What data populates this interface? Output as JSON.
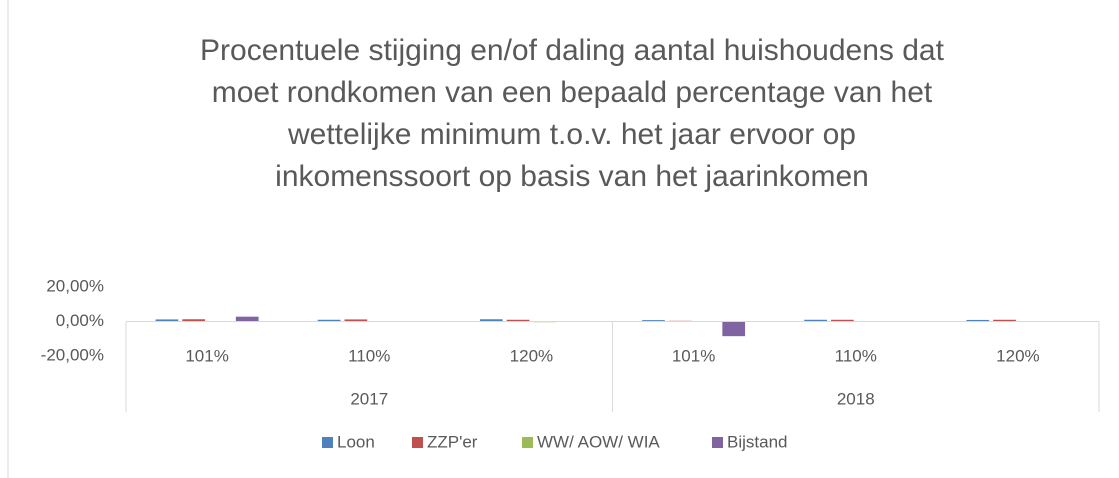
{
  "chart_data": {
    "type": "bar",
    "title": [
      "Procentuele stijging en/of daling aantal huishoudens dat",
      "moet rondkomen van een bepaald percentage van het",
      "wettelijke minimum t.o.v. het jaar ervoor op",
      "inkomenssoort op basis van het jaarinkomen"
    ],
    "categories": [
      "101%",
      "110%",
      "120%",
      "101%",
      "110%",
      "120%"
    ],
    "category_groups": [
      "2017",
      "2018"
    ],
    "series": [
      {
        "name": "Loon",
        "color": "#4f81bd",
        "values": [
          1.2,
          1.0,
          1.3,
          0.8,
          1.0,
          0.9
        ]
      },
      {
        "name": "ZZP'er",
        "color": "#c0504d",
        "values": [
          1.3,
          1.2,
          1.0,
          0.4,
          1.0,
          1.0
        ]
      },
      {
        "name": "WW/ AOW/ WIA",
        "color": "#9bbb59",
        "values": [
          -0.3,
          -0.3,
          -0.4,
          -0.2,
          -0.2,
          -0.2
        ]
      },
      {
        "name": "Bijstand",
        "color": "#8064a2",
        "values": [
          2.8,
          -0.2,
          -0.2,
          -8.5,
          -0.1,
          -0.1
        ]
      }
    ],
    "ylim": [
      -20,
      20
    ],
    "yticks": [
      {
        "value": 20,
        "label": "20,00%"
      },
      {
        "value": 0,
        "label": "0,00%"
      },
      {
        "value": -20,
        "label": "-20,00%"
      }
    ],
    "grid": false,
    "legend": "bottom"
  }
}
